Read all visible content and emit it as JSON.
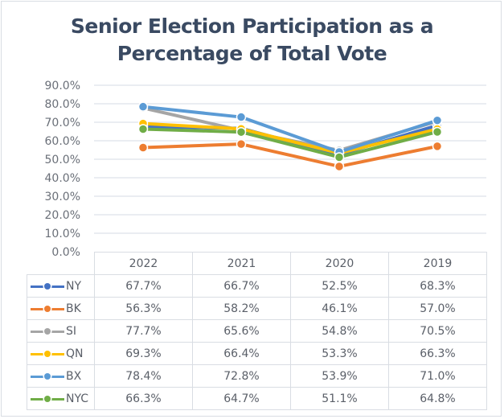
{
  "chart_data": {
    "type": "line",
    "title": "Senior Election Participation as a Percentage of Total Vote",
    "title_lines": [
      "Senior Election Participation  as a",
      "Percentage of Total Vote"
    ],
    "xlabel": "",
    "ylabel": "",
    "categories": [
      "2022",
      "2021",
      "2020",
      "2019"
    ],
    "ylim": [
      0,
      90
    ],
    "yticks": [
      "90.0%",
      "80.0%",
      "70.0%",
      "60.0%",
      "50.0%",
      "40.0%",
      "30.0%",
      "20.0%",
      "10.0%",
      "0.0%"
    ],
    "grid": true,
    "legend": "data-table",
    "series": [
      {
        "name": "NY",
        "color": "#4472c4",
        "values": [
          67.7,
          66.7,
          52.5,
          68.3
        ],
        "labels": [
          "67.7%",
          "66.7%",
          "52.5%",
          "68.3%"
        ]
      },
      {
        "name": "BK",
        "color": "#ed7d31",
        "values": [
          56.3,
          58.2,
          46.1,
          57.0
        ],
        "labels": [
          "56.3%",
          "58.2%",
          "46.1%",
          "57.0%"
        ]
      },
      {
        "name": "SI",
        "color": "#a5a5a5",
        "values": [
          77.7,
          65.6,
          54.8,
          70.5
        ],
        "labels": [
          "77.7%",
          "65.6%",
          "54.8%",
          "70.5%"
        ]
      },
      {
        "name": "QN",
        "color": "#ffc000",
        "values": [
          69.3,
          66.4,
          53.3,
          66.3
        ],
        "labels": [
          "69.3%",
          "66.4%",
          "53.3%",
          "66.3%"
        ]
      },
      {
        "name": "BX",
        "color": "#5b9bd5",
        "values": [
          78.4,
          72.8,
          53.9,
          71.0
        ],
        "labels": [
          "78.4%",
          "72.8%",
          "53.9%",
          "71.0%"
        ]
      },
      {
        "name": "NYC",
        "color": "#70ad47",
        "values": [
          66.3,
          64.7,
          51.1,
          64.8
        ],
        "labels": [
          "66.3%",
          "64.7%",
          "51.1%",
          "64.8%"
        ]
      }
    ]
  }
}
